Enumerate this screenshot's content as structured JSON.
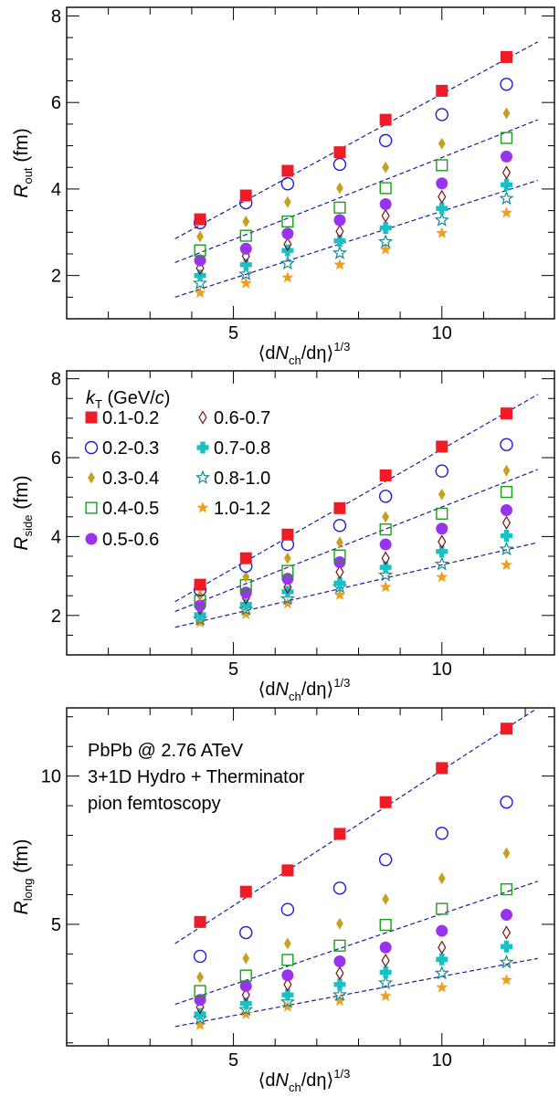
{
  "figure": {
    "legend_title": "k",
    "legend_title_sub": "T",
    "legend_title_unit": " (GeV/",
    "legend_title_unit_c": "c",
    "legend_title_close": ")",
    "annotation_lines": [
      "PbPb @ 2.76 ATeV",
      "3+1D Hydro + Therminator",
      "pion femtoscopy"
    ],
    "xlabel_parts": {
      "open": "⟨d",
      "N": "N",
      "sub": "ch",
      "mid": "/dη⟩",
      "sup": "1/3"
    },
    "colors": {
      "red": "#ee1c25",
      "blue": "#1c1cd8",
      "gold": "#c8a020",
      "green": "#18a018",
      "brown": "#7a1010",
      "violet": "#9933ee",
      "cyan": "#18c0c8",
      "teal": "#188890",
      "orange": "#f0a020",
      "fit": "#1c1c9c"
    }
  },
  "legend": [
    {
      "label": "0.1-0.2",
      "marker": "filled-square",
      "color": "#ee1c25"
    },
    {
      "label": "0.2-0.3",
      "marker": "open-circle",
      "color": "#1c1cd8"
    },
    {
      "label": "0.3-0.4",
      "marker": "filled-diamond",
      "color": "#c8a020"
    },
    {
      "label": "0.4-0.5",
      "marker": "open-square",
      "color": "#18a018"
    },
    {
      "label": "0.5-0.6",
      "marker": "filled-circle",
      "color": "#9933ee"
    },
    {
      "label": "0.6-0.7",
      "marker": "open-diamond",
      "color": "#7a1010"
    },
    {
      "label": "0.7-0.8",
      "marker": "filled-cross",
      "color": "#18c0c8"
    },
    {
      "label": "0.8-1.0",
      "marker": "open-star",
      "color": "#188890"
    },
    {
      "label": "1.0-1.2",
      "marker": "filled-star",
      "color": "#f0a020"
    }
  ],
  "chart_data": [
    {
      "type": "scatter",
      "ylabel": "R",
      "ylabel_sub": "out",
      "ylabel_unit": " (fm)",
      "xlabel": "⟨dN_ch/dη⟩^1/3",
      "xlim": [
        1,
        12.7
      ],
      "ylim": [
        1,
        8.2
      ],
      "x_ticks": [
        5,
        10
      ],
      "y_ticks": [
        2,
        4,
        6,
        8
      ],
      "x": [
        4.2,
        5.3,
        6.3,
        7.55,
        8.65,
        10.0,
        11.55
      ],
      "series": [
        {
          "name": "0.1-0.2",
          "values": [
            3.3,
            3.85,
            4.42,
            4.85,
            5.6,
            6.27,
            7.05
          ]
        },
        {
          "name": "0.2-0.3",
          "values": [
            3.22,
            3.68,
            4.12,
            4.57,
            5.12,
            5.72,
            6.42
          ]
        },
        {
          "name": "0.3-0.4",
          "values": [
            2.9,
            3.25,
            3.7,
            4.02,
            4.5,
            5.05,
            5.75
          ]
        },
        {
          "name": "0.4-0.5",
          "values": [
            2.58,
            2.92,
            3.25,
            3.57,
            4.02,
            4.55,
            5.18
          ]
        },
        {
          "name": "0.5-0.6",
          "values": [
            2.35,
            2.62,
            2.97,
            3.28,
            3.65,
            4.13,
            4.75
          ]
        },
        {
          "name": "0.6-0.7",
          "values": [
            2.17,
            2.45,
            2.72,
            3.02,
            3.38,
            3.82,
            4.38
          ]
        },
        {
          "name": "0.7-0.8",
          "values": [
            2.0,
            2.25,
            2.58,
            2.8,
            3.1,
            3.55,
            4.1
          ]
        },
        {
          "name": "0.8-1.0",
          "values": [
            1.82,
            2.03,
            2.28,
            2.52,
            2.78,
            3.28,
            3.78
          ]
        },
        {
          "name": "1.0-1.2",
          "values": [
            1.6,
            1.82,
            1.95,
            2.25,
            2.6,
            2.98,
            3.45
          ]
        }
      ],
      "fit_lines": [
        {
          "x": [
            3.6,
            12.3
          ],
          "y": [
            2.85,
            7.4
          ]
        },
        {
          "x": [
            3.6,
            12.3
          ],
          "y": [
            2.3,
            5.6
          ]
        },
        {
          "x": [
            3.6,
            12.3
          ],
          "y": [
            1.5,
            4.2
          ]
        }
      ]
    },
    {
      "type": "scatter",
      "ylabel": "R",
      "ylabel_sub": "side",
      "ylabel_unit": " (fm)",
      "xlabel": "⟨dN_ch/dη⟩^1/3",
      "xlim": [
        1,
        12.7
      ],
      "ylim": [
        1,
        8.2
      ],
      "x_ticks": [
        5,
        10
      ],
      "y_ticks": [
        2,
        4,
        6,
        8
      ],
      "x": [
        4.2,
        5.3,
        6.3,
        7.55,
        8.65,
        10.0,
        11.55
      ],
      "series": [
        {
          "name": "0.1-0.2",
          "values": [
            2.78,
            3.45,
            4.05,
            4.72,
            5.55,
            6.28,
            7.12
          ]
        },
        {
          "name": "0.2-0.3",
          "values": [
            2.65,
            3.25,
            3.8,
            4.28,
            5.02,
            5.66,
            6.33
          ]
        },
        {
          "name": "0.3-0.4",
          "values": [
            2.5,
            2.98,
            3.45,
            3.85,
            4.5,
            5.07,
            5.67
          ]
        },
        {
          "name": "0.4-0.5",
          "values": [
            2.37,
            2.77,
            3.13,
            3.52,
            4.18,
            4.58,
            5.13
          ]
        },
        {
          "name": "0.5-0.6",
          "values": [
            2.25,
            2.58,
            2.93,
            3.35,
            3.8,
            4.2,
            4.67
          ]
        },
        {
          "name": "0.6-0.7",
          "values": [
            2.18,
            2.45,
            2.72,
            3.1,
            3.45,
            3.87,
            4.35
          ]
        },
        {
          "name": "0.7-0.8",
          "values": [
            2.02,
            2.28,
            2.6,
            2.82,
            3.22,
            3.62,
            4.02
          ]
        },
        {
          "name": "0.8-1.0",
          "values": [
            1.9,
            2.15,
            2.42,
            2.72,
            3.02,
            3.3,
            3.68
          ]
        },
        {
          "name": "1.0-1.2",
          "values": [
            1.82,
            2.03,
            2.3,
            2.52,
            2.72,
            2.97,
            3.28
          ]
        }
      ],
      "fit_lines": [
        {
          "x": [
            3.6,
            12.3
          ],
          "y": [
            2.35,
            7.6
          ]
        },
        {
          "x": [
            3.6,
            12.3
          ],
          "y": [
            2.1,
            5.7
          ]
        },
        {
          "x": [
            3.6,
            12.3
          ],
          "y": [
            1.7,
            3.85
          ]
        }
      ]
    },
    {
      "type": "scatter",
      "ylabel": "R",
      "ylabel_sub": "long",
      "ylabel_unit": " (fm)",
      "xlabel": "⟨dN_ch/dη⟩^1/3",
      "xlim": [
        1,
        12.7
      ],
      "ylim": [
        0.9,
        12.3
      ],
      "x_ticks": [
        5,
        10
      ],
      "y_ticks": [
        5,
        10
      ],
      "x": [
        4.2,
        5.3,
        6.3,
        7.55,
        8.65,
        10.0,
        11.55
      ],
      "series": [
        {
          "name": "0.1-0.2",
          "values": [
            5.08,
            6.1,
            6.82,
            8.05,
            9.12,
            10.27,
            11.6
          ]
        },
        {
          "name": "0.2-0.3",
          "values": [
            3.92,
            4.72,
            5.5,
            6.22,
            7.18,
            8.07,
            9.12
          ]
        },
        {
          "name": "0.3-0.4",
          "values": [
            3.22,
            3.85,
            4.35,
            5.02,
            5.85,
            6.55,
            7.4
          ]
        },
        {
          "name": "0.4-0.5",
          "values": [
            2.75,
            3.27,
            3.8,
            4.28,
            4.98,
            5.52,
            6.18
          ]
        },
        {
          "name": "0.5-0.6",
          "values": [
            2.45,
            2.92,
            3.28,
            3.75,
            4.22,
            4.78,
            5.32
          ]
        },
        {
          "name": "0.6-0.7",
          "values": [
            2.2,
            2.62,
            2.97,
            3.35,
            3.78,
            4.22,
            4.72
          ]
        },
        {
          "name": "0.7-0.8",
          "values": [
            1.98,
            2.33,
            2.62,
            2.97,
            3.38,
            3.82,
            4.25
          ]
        },
        {
          "name": "0.8-1.0",
          "values": [
            1.82,
            2.12,
            2.38,
            2.62,
            3.02,
            3.35,
            3.72
          ]
        },
        {
          "name": "1.0-1.2",
          "values": [
            1.6,
            1.97,
            2.22,
            2.42,
            2.58,
            2.87,
            3.12
          ]
        }
      ],
      "fit_lines": [
        {
          "x": [
            3.6,
            12.3
          ],
          "y": [
            4.35,
            12.3
          ]
        },
        {
          "x": [
            3.6,
            12.3
          ],
          "y": [
            2.3,
            6.45
          ]
        },
        {
          "x": [
            3.6,
            12.3
          ],
          "y": [
            1.55,
            3.85
          ]
        }
      ]
    }
  ]
}
